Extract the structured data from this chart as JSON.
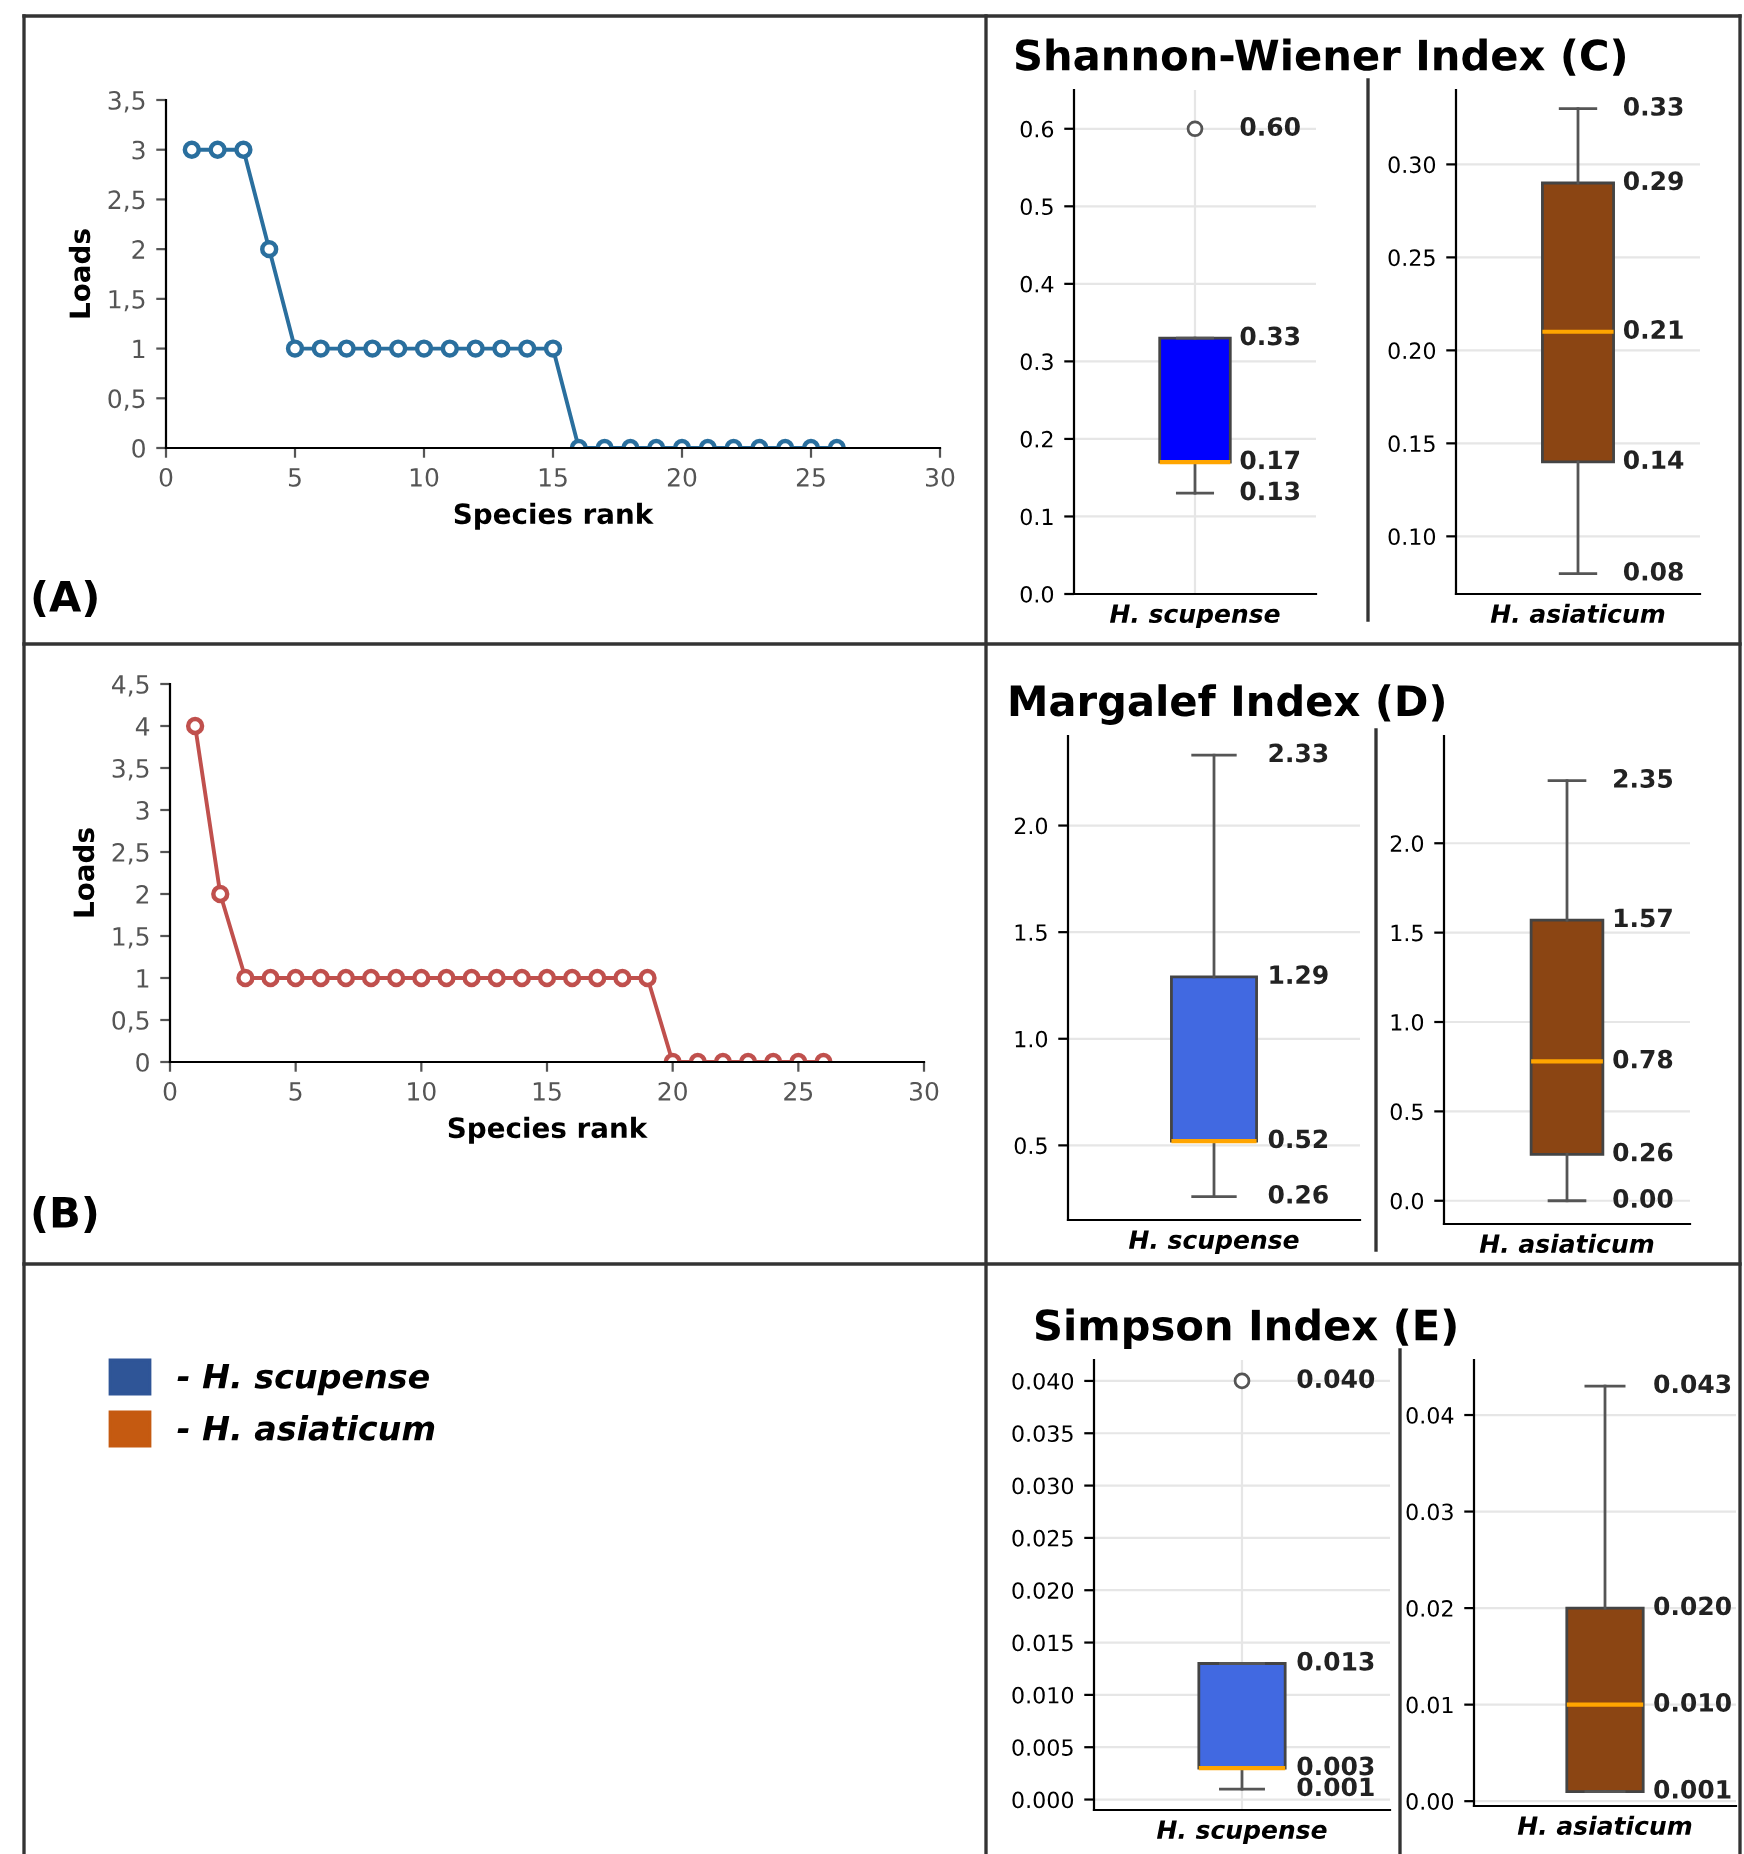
{
  "chart_data": [
    {
      "type": "line",
      "xlabel": "Species rank",
      "ylabel": "Loads",
      "annotations": [
        "(A)"
      ],
      "marker": "circle",
      "line_style": "solid",
      "grid": false,
      "x": [
        1,
        2,
        3,
        4,
        5,
        6,
        7,
        8,
        9,
        10,
        11,
        12,
        13,
        14,
        15,
        16,
        17,
        18,
        19,
        20,
        21,
        22,
        23,
        24,
        25,
        26
      ],
      "series": [
        {
          "color": "#2a6f9e",
          "values": [
            3,
            3,
            3,
            2,
            1,
            1,
            1,
            1,
            1,
            1,
            1,
            1,
            1,
            1,
            1,
            0,
            0,
            0,
            0,
            0,
            0,
            0,
            0,
            0,
            0,
            0
          ]
        }
      ],
      "xlim": [
        0,
        30
      ],
      "xticks": [
        0,
        5,
        10,
        15,
        20,
        25,
        30
      ],
      "ylim": [
        0,
        3.5
      ],
      "yticks": [
        0,
        {
          "value": 0.5,
          "label": "0,5"
        },
        1,
        {
          "value": 1.5,
          "label": "1,5"
        },
        2,
        {
          "value": 2.5,
          "label": "2,5"
        },
        3,
        {
          "value": 3.5,
          "label": "3,5"
        }
      ]
    },
    {
      "type": "box",
      "title": "Shannon-Wiener Index (C)",
      "categories": [
        "H. scupense"
      ],
      "color": "#0000ff",
      "grid": true,
      "boxes": [
        {
          "low": 0.13,
          "q1": 0.17,
          "median": 0.17,
          "q3": 0.33,
          "high": 0.33,
          "outliers": [
            0.6
          ]
        }
      ],
      "ylim": [
        0,
        0.65
      ],
      "yticks": [
        {
          "value": 0,
          "label": "0.0"
        },
        0.1,
        0.2,
        0.3,
        0.4,
        0.5,
        0.6
      ],
      "annotations": [
        "0.60",
        {
          "text": "0.33",
          "x": "H. scupense",
          "y": 0.33
        },
        {
          "text": "0.17",
          "x": "H. scupense",
          "y": 0.17
        },
        {
          "text": "0.13",
          "x": "H. scupense",
          "y": 0.13
        }
      ]
    },
    {
      "type": "box",
      "categories": [
        "H. asiaticum"
      ],
      "color": "#8b4513",
      "grid": "y",
      "boxes": [
        {
          "low": 0.08,
          "q1": 0.14,
          "median": 0.21,
          "q3": 0.29,
          "high": 0.33
        }
      ],
      "ylim": [
        0.069,
        0.34
      ],
      "yticks": [
        {
          "value": 0.1,
          "label": "0.10"
        },
        0.15,
        {
          "value": 0.2,
          "label": "0.20"
        },
        0.25,
        {
          "value": 0.3,
          "label": "0.30"
        }
      ],
      "annotations": [
        {
          "text": "0.33",
          "x": "H. asiaticum",
          "y": 0.33
        },
        {
          "text": "0.29",
          "x": "H. asiaticum",
          "y": 0.29
        },
        {
          "text": "0.21",
          "x": "H. asiaticum",
          "y": 0.21
        },
        {
          "text": "0.14",
          "x": "H. asiaticum",
          "y": 0.14
        },
        {
          "text": "0.08",
          "x": "H. asiaticum",
          "y": 0.08
        }
      ]
    },
    {
      "type": "line",
      "xlabel": "Species rank",
      "ylabel": "Loads",
      "annotations": [
        "(B)"
      ],
      "marker": "circle",
      "line_style": "solid",
      "grid": false,
      "x": [
        1,
        2,
        3,
        4,
        5,
        6,
        7,
        8,
        9,
        10,
        11,
        12,
        13,
        14,
        15,
        16,
        17,
        18,
        19,
        20,
        21,
        22,
        23,
        24,
        25,
        26
      ],
      "series": [
        {
          "color": "#c0504d",
          "values": [
            4,
            2,
            1,
            1,
            1,
            1,
            1,
            1,
            1,
            1,
            1,
            1,
            1,
            1,
            1,
            1,
            1,
            1,
            1,
            0,
            0,
            0,
            0,
            0,
            0,
            0
          ]
        }
      ],
      "xlim": [
        0,
        30
      ],
      "xticks": [
        0,
        5,
        10,
        15,
        20,
        25,
        30
      ],
      "ylim": [
        0,
        4.5
      ],
      "yticks": [
        0,
        {
          "value": 0.5,
          "label": "0,5"
        },
        1,
        {
          "value": 1.5,
          "label": "1,5"
        },
        2,
        {
          "value": 2.5,
          "label": "2,5"
        },
        3,
        {
          "value": 3.5,
          "label": "3,5"
        },
        4,
        {
          "value": 4.5,
          "label": "4,5"
        }
      ]
    },
    {
      "type": "box",
      "title": "Margalef Index (D)",
      "categories": [
        "H. scupense"
      ],
      "color": "#4169e1",
      "grid": "y",
      "boxes": [
        {
          "low": 0.26,
          "q1": 0.52,
          "median": 0.52,
          "q3": 1.29,
          "high": 2.33
        }
      ],
      "ylim": [
        0.15,
        2.42
      ],
      "yticks": [
        0.5,
        {
          "value": 1,
          "label": "1.0"
        },
        1.5,
        {
          "value": 2,
          "label": "2.0"
        }
      ],
      "annotations": [
        {
          "text": "2.33",
          "x": "H. scupense",
          "y": 2.33
        },
        {
          "text": "1.29",
          "x": "H. scupense",
          "y": 1.29
        },
        {
          "text": "0.52",
          "x": "H. scupense",
          "y": 0.52
        },
        {
          "text": "0.26",
          "x": "H. scupense",
          "y": 0.26
        }
      ]
    },
    {
      "type": "box",
      "categories": [
        "H. asiaticum"
      ],
      "color": "#8b4513",
      "grid": "y",
      "boxes": [
        {
          "low": 0,
          "q1": 0.26,
          "median": 0.78,
          "q3": 1.57,
          "high": 2.35
        }
      ],
      "ylim": [
        -0.13,
        2.6
      ],
      "yticks": [
        {
          "value": 0,
          "label": "0.0"
        },
        0.5,
        {
          "value": 1,
          "label": "1.0"
        },
        1.5,
        {
          "value": 2,
          "label": "2.0"
        }
      ],
      "annotations": [
        {
          "text": "2.35",
          "x": "H. asiaticum",
          "y": 2.35
        },
        {
          "text": "1.57",
          "x": "H. asiaticum",
          "y": 1.57
        },
        {
          "text": "0.78",
          "x": "H. asiaticum",
          "y": 0.78
        },
        {
          "text": "0.26",
          "x": "H. asiaticum",
          "y": 0.26
        },
        {
          "text": "0.00",
          "x": "H. asiaticum",
          "y": 0
        }
      ]
    },
    {
      "type": "other",
      "legend": "top left",
      "series": [
        {
          "name": "- H. scupense",
          "color": "#2f5597"
        },
        {
          "name": "- H. asiaticum",
          "color": "#c55a11"
        }
      ]
    },
    {
      "type": "box",
      "title": "Simpson Index (E)",
      "categories": [
        "H. scupense"
      ],
      "color": "#4169e1",
      "grid": true,
      "boxes": [
        {
          "low": 0.001,
          "q1": 0.003,
          "median": 0.003,
          "q3": 0.013,
          "high": 0.013,
          "outliers": [
            0.04
          ]
        }
      ],
      "ylim": [
        -0.001,
        0.042
      ],
      "yticks": [
        {
          "value": 0,
          "label": "0.000"
        },
        0.005,
        {
          "value": 0.01,
          "label": "0.010"
        },
        0.015,
        {
          "value": 0.02,
          "label": "0.020"
        },
        0.025,
        {
          "value": 0.03,
          "label": "0.030"
        },
        0.035,
        {
          "value": 0.04,
          "label": "0.040"
        }
      ],
      "annotations": [
        "0.040",
        {
          "text": "0.013",
          "x": "H. scupense",
          "y": 0.013
        },
        {
          "text": "0.003",
          "x": "H. scupense",
          "y": 0.003
        },
        {
          "text": "0.001",
          "x": "H. scupense",
          "y": 0.001
        }
      ]
    },
    {
      "type": "box",
      "categories": [
        "H. asiaticum"
      ],
      "color": "#8b4513",
      "grid": "y",
      "boxes": [
        {
          "low": 0.001,
          "q1": 0.001,
          "median": 0.01,
          "q3": 0.02,
          "high": 0.043
        }
      ],
      "ylim": [
        -0.0005,
        0.0457
      ],
      "yticks": [
        {
          "value": 0,
          "label": "0.00"
        },
        0.01,
        0.02,
        0.03,
        0.04
      ],
      "annotations": [
        {
          "text": "0.043",
          "x": "H. asiaticum",
          "y": 0.043
        },
        {
          "text": "0.020",
          "x": "H. asiaticum",
          "y": 0.02
        },
        {
          "text": "0.010",
          "x": "H. asiaticum",
          "y": 0.01
        },
        {
          "text": "0.001",
          "x": "H. asiaticum",
          "y": 0.001
        }
      ]
    }
  ]
}
